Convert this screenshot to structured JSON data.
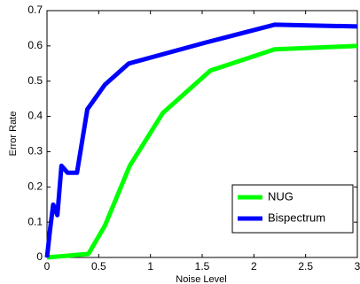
{
  "chart_data": {
    "type": "line",
    "xlabel": "Noise Level",
    "ylabel": "Error Rate",
    "series": [
      {
        "name": "NUG",
        "color": "#00ff00",
        "x": [
          0,
          0.4,
          0.56,
          0.8,
          1.12,
          1.58,
          2.2,
          3.0
        ],
        "values": [
          0,
          0.01,
          0.09,
          0.26,
          0.41,
          0.53,
          0.59,
          0.6
        ]
      },
      {
        "name": "Bispectrum",
        "color": "#0000ff",
        "x": [
          0,
          0.03,
          0.06,
          0.1,
          0.14,
          0.2,
          0.29,
          0.39,
          0.56,
          0.79,
          1.54,
          2.2,
          3.0
        ],
        "values": [
          0,
          0.08,
          0.15,
          0.12,
          0.26,
          0.24,
          0.24,
          0.42,
          0.49,
          0.55,
          0.61,
          0.66,
          0.655
        ]
      }
    ],
    "xlim": [
      0,
      3
    ],
    "xticks": [
      0,
      0.5,
      1,
      1.5,
      2,
      2.5,
      3
    ],
    "ylim": [
      0,
      0.7
    ],
    "yticks": [
      0,
      0.1,
      0.2,
      0.3,
      0.4,
      0.5,
      0.6,
      0.7
    ],
    "grid": false,
    "legend": "lower-right"
  }
}
